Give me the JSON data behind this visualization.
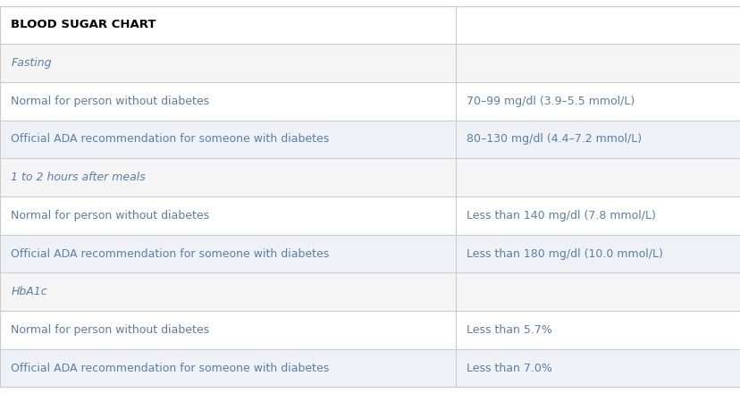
{
  "title": "BLOOD SUGAR CHART",
  "rows": [
    {
      "left": "BLOOD SUGAR CHART",
      "right": "",
      "style": "header"
    },
    {
      "left": "Fasting",
      "right": "",
      "style": "section"
    },
    {
      "left": "Normal for person without diabetes",
      "right": "70–99 mg/dl (3.9–5.5 mmol/L)",
      "style": "data"
    },
    {
      "left": "Official ADA recommendation for someone with diabetes",
      "right": "80–130 mg/dl (4.4–7.2 mmol/L)",
      "style": "data"
    },
    {
      "left": "1 to 2 hours after meals",
      "right": "",
      "style": "section"
    },
    {
      "left": "Normal for person without diabetes",
      "right": "Less than 140 mg/dl (7.8 mmol/L)",
      "style": "data"
    },
    {
      "left": "Official ADA recommendation for someone with diabetes",
      "right": "Less than 180 mg/dl (10.0 mmol/L)",
      "style": "data"
    },
    {
      "left": "HbA1c",
      "right": "",
      "style": "section"
    },
    {
      "left": "Normal for person without diabetes",
      "right": "Less than 5.7%",
      "style": "data"
    },
    {
      "left": "Official ADA recommendation for someone with diabetes",
      "right": "Less than 7.0%",
      "style": "data"
    }
  ],
  "col_split": 0.615,
  "bg_color": "#ffffff",
  "section_bg": "#f5f5f5",
  "data_bg_odd": "#ffffff",
  "data_bg_even": "#eef2f7",
  "border_color": "#cccccc",
  "header_text_color": "#000000",
  "section_text_color": "#5a7fa8",
  "data_text_color_left": "#5a7fa8",
  "data_text_color_right": "#5a7fa8",
  "header_fontsize": 9.5,
  "section_fontsize": 9,
  "data_fontsize": 9
}
